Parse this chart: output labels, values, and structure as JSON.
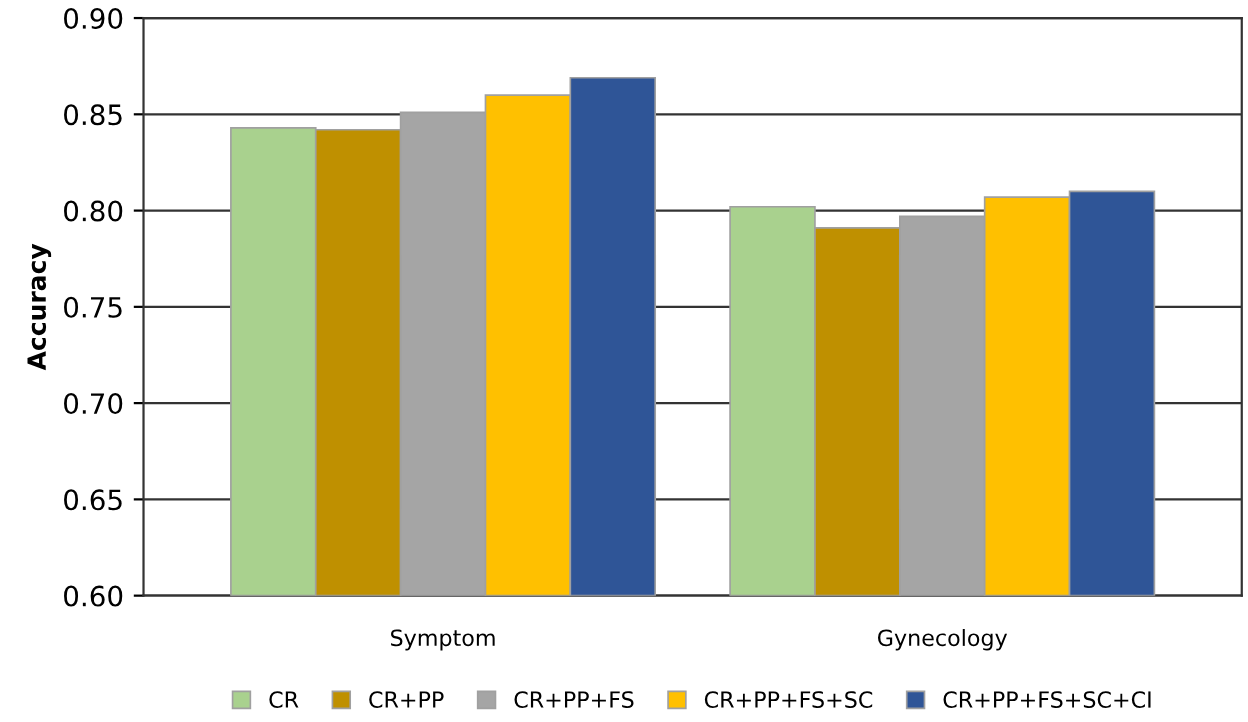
{
  "chart_data": {
    "type": "bar",
    "ylabel": "Accuracy",
    "categories": [
      "Symptom",
      "Gynecology"
    ],
    "series": [
      {
        "name": "CR",
        "color": "#a9d18e",
        "values": [
          0.843,
          0.802
        ]
      },
      {
        "name": "CR+PP",
        "color": "#bf9000",
        "values": [
          0.842,
          0.791
        ]
      },
      {
        "name": "CR+PP+FS",
        "color": "#a5a5a5",
        "values": [
          0.851,
          0.797
        ]
      },
      {
        "name": "CR+PP+FS+SC",
        "color": "#ffc000",
        "values": [
          0.86,
          0.807
        ]
      },
      {
        "name": "CR+PP+FS+SC+CI",
        "color": "#2f5597",
        "values": [
          0.869,
          0.81
        ]
      }
    ],
    "ylim": [
      0.6,
      0.9
    ],
    "yticks": [
      {
        "value": 0.6,
        "label": "0.60"
      },
      {
        "value": 0.65,
        "label": "0.65"
      },
      {
        "value": 0.7,
        "label": "0.70"
      },
      {
        "value": 0.75,
        "label": "0.75"
      },
      {
        "value": 0.8,
        "label": "0.80"
      },
      {
        "value": 0.85,
        "label": "0.85"
      },
      {
        "value": 0.9,
        "label": "0.90"
      }
    ],
    "grid": "y",
    "legend": "bottom"
  }
}
